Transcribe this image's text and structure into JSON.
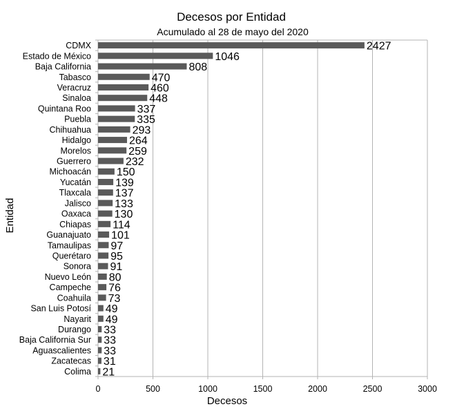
{
  "chart_data": {
    "type": "bar",
    "orientation": "horizontal",
    "title": "Decesos por Entidad",
    "subtitle": "Acumulado al 28 de mayo del 2020",
    "xlabel": "Decesos",
    "ylabel": "Entidad",
    "xlim": [
      0,
      3000
    ],
    "xticks": [
      0,
      500,
      1000,
      1500,
      2000,
      2500,
      3000
    ],
    "grid": true,
    "bar_color": "#5a5a5a",
    "categories": [
      "CDMX",
      "Estado de México",
      "Baja California",
      "Tabasco",
      "Veracruz",
      "Sinaloa",
      "Quintana Roo",
      "Puebla",
      "Chihuahua",
      "Hidalgo",
      "Morelos",
      "Guerrero",
      "Michoacán",
      "Yucatán",
      "Tlaxcala",
      "Jalisco",
      "Oaxaca",
      "Chiapas",
      "Guanajuato",
      "Tamaulipas",
      "Querétaro",
      "Sonora",
      "Nuevo León",
      "Campeche",
      "Coahuila",
      "San Luis Potosí",
      "Nayarit",
      "Durango",
      "Baja California Sur",
      "Aguascalientes",
      "Zacatecas",
      "Colima"
    ],
    "values": [
      2427,
      1046,
      808,
      470,
      460,
      448,
      337,
      335,
      293,
      264,
      259,
      232,
      150,
      139,
      137,
      133,
      130,
      114,
      101,
      97,
      95,
      91,
      80,
      76,
      73,
      49,
      49,
      33,
      33,
      33,
      31,
      21
    ]
  }
}
